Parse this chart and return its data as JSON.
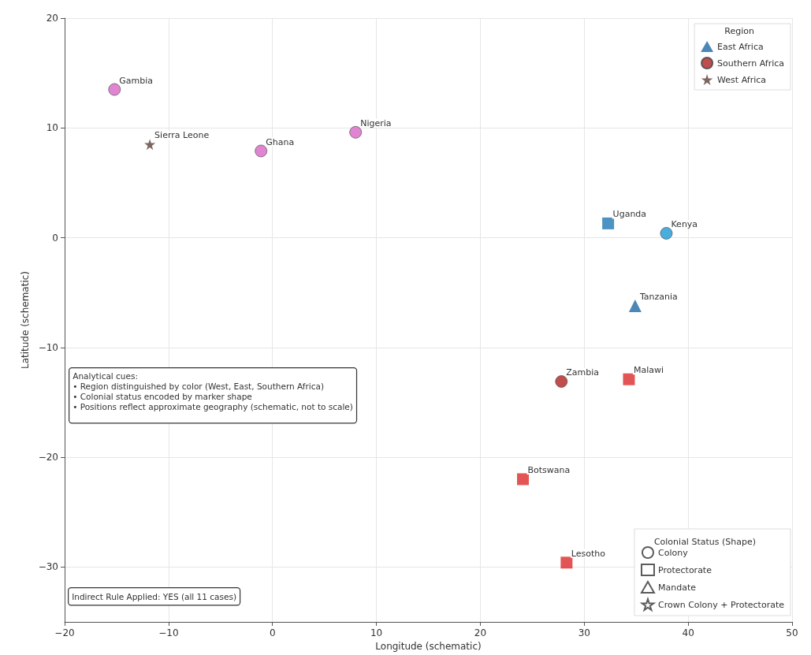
{
  "chart_data": {
    "type": "scatter",
    "xlabel": "Longitude (schematic)",
    "ylabel": "Latitude (schematic)",
    "xlim": [
      -20,
      50
    ],
    "xticks": [
      -20,
      -10,
      0,
      10,
      20,
      30,
      40,
      50
    ],
    "ylim": [
      -35,
      20
    ],
    "yticks": [
      -30,
      -20,
      -10,
      0,
      10,
      20
    ],
    "grid": true,
    "legend": "right",
    "legend_title": "Region",
    "series": [
      {
        "color": "#d966c8",
        "marker": "circle",
        "x": [
          -15.2,
          -1.1,
          8.0
        ],
        "values": [
          13.5,
          7.9,
          9.6
        ]
      },
      {
        "name": "West Africa",
        "color": "#5d4037",
        "marker": "star",
        "x": [
          -11.8
        ],
        "values": [
          8.5
        ]
      },
      {
        "color": "#1f77b4",
        "marker": "square",
        "x": [
          32.3
        ],
        "values": [
          1.3
        ]
      },
      {
        "color": "#1b9ad6",
        "marker": "circle",
        "x": [
          37.9
        ],
        "values": [
          0.4
        ]
      },
      {
        "name": "East Africa",
        "color": "#1f6aa5",
        "marker": "triangle",
        "x": [
          34.9
        ],
        "values": [
          -6.2
        ]
      },
      {
        "name": "Southern Africa",
        "color": "#b22222",
        "marker": "circle",
        "x": [
          27.8
        ],
        "values": [
          -13.1
        ]
      },
      {
        "color": "#dc2a2a",
        "marker": "square",
        "x": [
          34.3,
          24.1,
          28.3
        ],
        "values": [
          -12.9,
          -22.0,
          -29.6
        ]
      },
      {
        "name": "Colony",
        "color": "#333333",
        "marker": "circle"
      },
      {
        "name": "Protectorate",
        "color": "#333333",
        "marker": "square"
      },
      {
        "name": "Mandate",
        "color": "#333333",
        "marker": "triangle"
      },
      {
        "name": "Crown Colony + Protectorate",
        "color": "#333333",
        "marker": "star"
      }
    ],
    "annotations": [
      "Analytical cues:\n• Region distinguished by color (West, East, Southern Africa)\n• Colonial status encoded by marker shape\n• Positions reflect approximate geography (schematic, not to scale)",
      "Indirect Rule Applied: YES (all 11 cases)",
      "Colonial Status (Shape)",
      {
        "text": "Gambia",
        "x": -15.2,
        "y": 13.5
      },
      {
        "text": "Sierra Leone",
        "x": -11.8,
        "y": 8.5
      },
      {
        "text": "Ghana",
        "x": -1.1,
        "y": 7.9
      },
      {
        "text": "Nigeria",
        "x": 8.0,
        "y": 9.6
      },
      {
        "text": "Uganda",
        "x": 32.3,
        "y": 1.3
      },
      {
        "text": "Kenya",
        "x": 37.9,
        "y": 0.4
      },
      {
        "text": "Tanzania",
        "x": 34.9,
        "y": -6.2
      },
      {
        "text": "Zambia",
        "x": 27.8,
        "y": -13.1
      },
      {
        "text": "Malawi",
        "x": 34.3,
        "y": -12.9
      },
      {
        "text": "Botswana",
        "x": 24.1,
        "y": -22.0
      },
      {
        "text": "Lesotho",
        "x": 28.3,
        "y": -29.6
      }
    ]
  }
}
